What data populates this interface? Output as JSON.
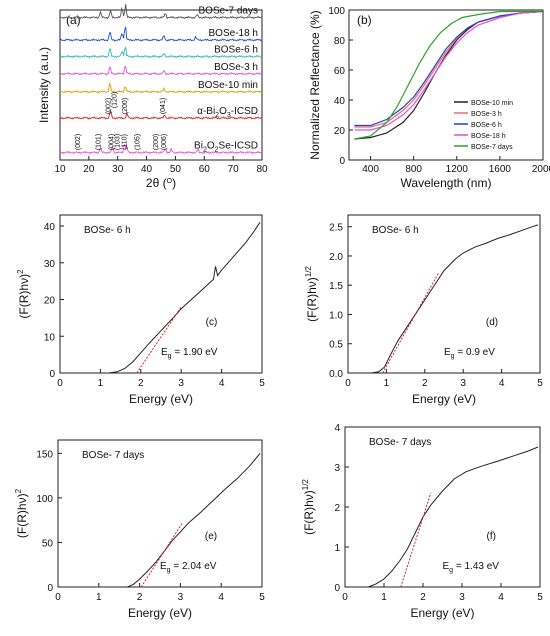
{
  "chart_data": [
    {
      "panel": "(a)",
      "type": "line",
      "xlabel": "2θ (O)",
      "ylabel": "Intensity (a.u.)",
      "xlim": [
        10,
        80
      ],
      "xticks": [
        10,
        20,
        30,
        40,
        50,
        60,
        70,
        80
      ],
      "series": [
        {
          "name": "BOSe-7 days",
          "color": "#555555",
          "baseline": 0.95,
          "peaks": [
            [
              24,
              0.04
            ],
            [
              27.5,
              0.05
            ],
            [
              31.5,
              0.07
            ],
            [
              32.7,
              0.09
            ],
            [
              46.5,
              0.03
            ],
            [
              57.5,
              0.02
            ]
          ]
        },
        {
          "name": "BOSe-18 h",
          "color": "#1f4fd1",
          "baseline": 0.8,
          "peaks": [
            [
              27.3,
              0.06
            ],
            [
              31.5,
              0.05
            ],
            [
              32.6,
              0.1
            ],
            [
              46,
              0.03
            ],
            [
              57,
              0.02
            ]
          ]
        },
        {
          "name": "BOSe-6 h",
          "color": "#2db8b8",
          "baseline": 0.69,
          "peaks": [
            [
              27.3,
              0.06
            ],
            [
              31.5,
              0.04
            ],
            [
              32.6,
              0.07
            ],
            [
              46,
              0.02
            ]
          ]
        },
        {
          "name": "BOSe-3 h",
          "color": "#e64fd6",
          "baseline": 0.575,
          "peaks": [
            [
              27.3,
              0.05
            ],
            [
              32.6,
              0.06
            ],
            [
              46,
              0.02
            ]
          ]
        },
        {
          "name": "BOSe-10 min",
          "color": "#d4a500",
          "baseline": 0.455,
          "peaks": [
            [
              27.3,
              0.06
            ],
            [
              32.6,
              0.04
            ],
            [
              46,
              0.02
            ]
          ]
        },
        {
          "name": "α-Bi2O3-ICSD",
          "color": "#d2232a",
          "baseline": 0.28,
          "peaks": [
            [
              27.5,
              0.05
            ],
            [
              33.2,
              0.03
            ],
            [
              46.3,
              0.02
            ]
          ]
        },
        {
          "name": "Bi2O2Se-ICSD",
          "color": "#e64fd6",
          "baseline": 0.05,
          "peaks": [
            [
              24,
              0.03
            ],
            [
              28.2,
              0.04
            ],
            [
              32.3,
              0.06
            ],
            [
              33.1,
              0.04
            ],
            [
              46.5,
              0.03
            ],
            [
              48.6,
              0.02
            ],
            [
              57.8,
              0.02
            ]
          ]
        }
      ],
      "labels_a_alpha": [
        "(002)",
        "(120)",
        "(200)",
        "(041)"
      ],
      "labels_a_bise": [
        "(002)",
        "(101)",
        "(004)",
        "(103)",
        "(110)",
        "(105)",
        "(200)",
        "(006)"
      ]
    },
    {
      "panel": "(b)",
      "type": "line",
      "xlabel": "Wavelength (nm)",
      "ylabel": "Normalized Reflectance (%)",
      "xlim": [
        200,
        2000
      ],
      "ylim": [
        0,
        100
      ],
      "xticks": [
        400,
        800,
        1200,
        1600,
        2000
      ],
      "yticks": [
        0,
        20,
        40,
        60,
        80,
        100
      ],
      "legend": "bottom-right",
      "series": [
        {
          "name": "BOSe-10 min",
          "color": "#222222",
          "x": [
            250,
            400,
            550,
            700,
            800,
            900,
            1000,
            1100,
            1200,
            1300,
            1400,
            1600,
            1800,
            2000
          ],
          "y": [
            14,
            15,
            18,
            25,
            33,
            45,
            58,
            70,
            80,
            87,
            92,
            96,
            98,
            99
          ]
        },
        {
          "name": "BOSe-3 h",
          "color": "#e07070",
          "x": [
            250,
            400,
            550,
            700,
            800,
            900,
            1000,
            1100,
            1200,
            1300,
            1400,
            1600,
            1800,
            2000
          ],
          "y": [
            22,
            22,
            25,
            33,
            40,
            50,
            61,
            72,
            81,
            88,
            92,
            96,
            98,
            99
          ]
        },
        {
          "name": "BOSe-6 h",
          "color": "#2a3fc9",
          "x": [
            250,
            400,
            550,
            700,
            800,
            900,
            1000,
            1100,
            1200,
            1300,
            1400,
            1600,
            1800,
            2000
          ],
          "y": [
            23,
            23,
            27,
            35,
            42,
            52,
            63,
            74,
            82,
            88,
            92,
            96,
            98,
            99
          ]
        },
        {
          "name": "BOSe-18 h",
          "color": "#e64fd6",
          "x": [
            250,
            400,
            550,
            700,
            800,
            900,
            1000,
            1100,
            1200,
            1300,
            1400,
            1600,
            1800,
            2000
          ],
          "y": [
            20,
            20,
            23,
            30,
            37,
            47,
            58,
            69,
            78,
            85,
            90,
            95,
            98,
            99
          ]
        },
        {
          "name": "BOSe-7 days",
          "color": "#2ca02c",
          "x": [
            250,
            400,
            550,
            650,
            750,
            850,
            950,
            1050,
            1150,
            1250,
            1400,
            1600,
            1800,
            2000
          ],
          "y": [
            14,
            16,
            25,
            36,
            50,
            64,
            76,
            85,
            91,
            95,
            97,
            99,
            99,
            99
          ]
        }
      ]
    },
    {
      "panel": "(c)",
      "type": "line",
      "note": "BOSe- 6 h",
      "eg": "E",
      "eg_sub": "g",
      "eg_val": " = 1.90 eV",
      "xlabel": "Energy (eV)",
      "ylabel": "(F(R)hν)",
      "ylabel_sup": "2",
      "xlim": [
        0,
        5
      ],
      "ylim": [
        0,
        43
      ],
      "xticks": [
        0,
        1,
        2,
        3,
        4,
        5
      ],
      "yticks": [
        0,
        10,
        20,
        30,
        40
      ],
      "x": [
        1.2,
        1.4,
        1.6,
        1.8,
        2.0,
        2.2,
        2.5,
        2.8,
        3.0,
        3.3,
        3.6,
        3.8,
        3.85,
        3.9,
        4.0,
        4.2,
        4.4,
        4.6,
        4.8,
        4.95
      ],
      "y": [
        0,
        0.3,
        1.2,
        3,
        5.5,
        8,
        11.5,
        15,
        17.5,
        20.5,
        23.5,
        25.5,
        29,
        26.5,
        28,
        30.5,
        33,
        35.5,
        38.5,
        41
      ],
      "fit": {
        "x": [
          1.9,
          3.0
        ],
        "y": [
          0,
          18
        ]
      }
    },
    {
      "panel": "(d)",
      "type": "line",
      "note": "BOSe- 6 h",
      "eg": "E",
      "eg_sub": "g",
      "eg_val": " = 0.9 eV",
      "xlabel": "Energy (eV)",
      "ylabel": "(F(R)hν)",
      "ylabel_sup": "1/2",
      "xlim": [
        0,
        5
      ],
      "ylim": [
        0,
        2.7
      ],
      "xticks": [
        0,
        1,
        2,
        3,
        4,
        5
      ],
      "yticks": [
        0.0,
        0.5,
        1.0,
        1.5,
        2.0,
        2.5
      ],
      "x": [
        0.6,
        0.8,
        0.95,
        1.1,
        1.3,
        1.6,
        1.9,
        2.2,
        2.5,
        2.8,
        3.0,
        3.3,
        3.6,
        3.9,
        4.2,
        4.5,
        4.8,
        4.95
      ],
      "y": [
        0,
        0.02,
        0.1,
        0.3,
        0.55,
        0.85,
        1.15,
        1.45,
        1.75,
        1.95,
        2.05,
        2.15,
        2.22,
        2.3,
        2.36,
        2.43,
        2.5,
        2.53
      ],
      "fit": {
        "x": [
          0.9,
          2.35
        ],
        "y": [
          0,
          1.7
        ]
      }
    },
    {
      "panel": "(e)",
      "type": "line",
      "note": "BOSe- 7 days",
      "eg": "E",
      "eg_sub": "g",
      "eg_val": " = 2.04 eV",
      "xlabel": "Energy (eV)",
      "ylabel": "(F(R)hν)",
      "ylabel_sup": "2",
      "xlim": [
        0,
        5
      ],
      "ylim": [
        0,
        165
      ],
      "xticks": [
        0,
        1,
        2,
        3,
        4,
        5
      ],
      "yticks": [
        0,
        50,
        100,
        150
      ],
      "x": [
        1.7,
        1.85,
        2.0,
        2.2,
        2.4,
        2.6,
        2.8,
        3.0,
        3.2,
        3.5,
        3.8,
        4.1,
        4.4,
        4.7,
        4.95
      ],
      "y": [
        0,
        3,
        9,
        18,
        28,
        40,
        52,
        62,
        72,
        84,
        97,
        110,
        122,
        136,
        150
      ],
      "fit": {
        "x": [
          2.04,
          3.05
        ],
        "y": [
          0,
          72
        ]
      }
    },
    {
      "panel": "(f)",
      "type": "line",
      "note": "BOSe- 7 days",
      "eg": "E",
      "eg_sub": "g",
      "eg_val": " = 1.43 eV",
      "xlabel": "Energy (eV)",
      "ylabel": "(F(R)hν)",
      "ylabel_sup": "1/2",
      "xlim": [
        0,
        5
      ],
      "ylim": [
        0,
        4
      ],
      "xticks": [
        0,
        1,
        2,
        3,
        4,
        5
      ],
      "yticks": [
        0,
        1,
        2,
        3,
        4
      ],
      "x": [
        0.6,
        0.8,
        1.0,
        1.2,
        1.4,
        1.6,
        1.8,
        2.0,
        2.2,
        2.5,
        2.8,
        3.1,
        3.5,
        3.9,
        4.3,
        4.7,
        4.95
      ],
      "y": [
        0,
        0.08,
        0.2,
        0.4,
        0.65,
        0.95,
        1.35,
        1.75,
        2.05,
        2.4,
        2.7,
        2.88,
        3.02,
        3.14,
        3.27,
        3.4,
        3.5
      ],
      "fit": {
        "x": [
          1.43,
          2.2
        ],
        "y": [
          0,
          2.35
        ]
      }
    }
  ]
}
